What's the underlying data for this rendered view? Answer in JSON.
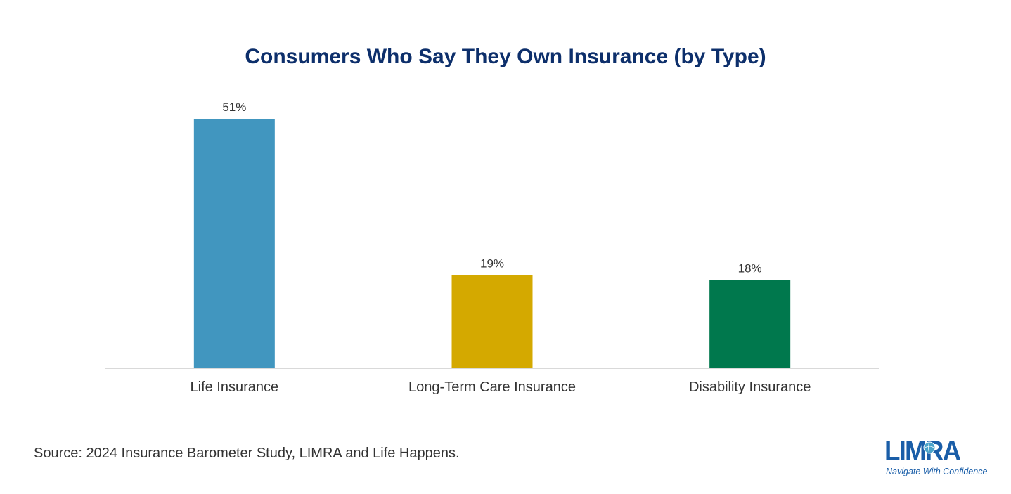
{
  "chart_data": {
    "type": "bar",
    "title": "Consumers Who Say They Own Insurance (by Type)",
    "categories": [
      "Life Insurance",
      "Long-Term Care Insurance",
      "Disability Insurance"
    ],
    "values": [
      51,
      19,
      18
    ],
    "value_labels": [
      "51%",
      "19%",
      "18%"
    ],
    "colors": [
      "#4196bf",
      "#d4a900",
      "#00784d"
    ],
    "xlabel": "",
    "ylabel": "",
    "ylim": [
      0,
      51
    ],
    "grid": false,
    "legend": "none"
  },
  "source": "Source: 2024 Insurance Barometer Study, LIMRA and Life Happens.",
  "logo": {
    "wordmark": "LIMRA",
    "tagline": "Navigate With Confidence",
    "color": "#1a5ea8"
  },
  "colors": {
    "title": "#0d2f6b",
    "text": "#333333",
    "axis": "#d9d9d9"
  }
}
